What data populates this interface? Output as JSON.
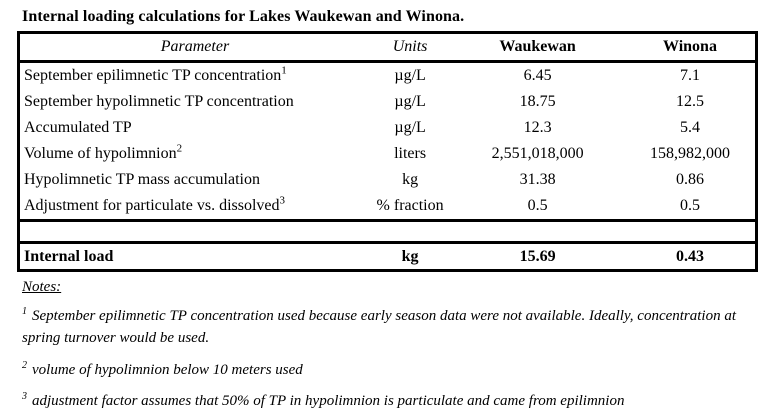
{
  "title": "Internal loading calculations for Lakes Waukewan and Winona.",
  "table": {
    "headers": [
      "Parameter",
      "Units",
      "Waukewan",
      "Winona"
    ],
    "rows": [
      {
        "parameter": "September epilimnetic TP concentration",
        "sup": "1",
        "units": "µg/L",
        "waukewan": "6.45",
        "winona": "7.1"
      },
      {
        "parameter": "September hypolimnetic TP concentration",
        "sup": "",
        "units": "µg/L",
        "waukewan": "18.75",
        "winona": "12.5"
      },
      {
        "parameter": "Accumulated TP",
        "sup": "",
        "units": "µg/L",
        "waukewan": "12.3",
        "winona": "5.4"
      },
      {
        "parameter": "Volume of hypolimnion",
        "sup": "2",
        "units": "liters",
        "waukewan": "2,551,018,000",
        "winona": "158,982,000"
      },
      {
        "parameter": "Hypolimnetic TP mass accumulation",
        "sup": "",
        "units": "kg",
        "waukewan": "31.38",
        "winona": "0.86"
      },
      {
        "parameter": "Adjustment for particulate vs. dissolved",
        "sup": "3",
        "units": "% fraction",
        "waukewan": "0.5",
        "winona": "0.5"
      }
    ],
    "total_row": {
      "parameter": "Internal load",
      "units": "kg",
      "waukewan": "15.69",
      "winona": "0.43"
    }
  },
  "notes": {
    "label": "Notes:",
    "items": [
      {
        "marker": "1",
        "text": "September epilimnetic TP concentration used because early season data were not available.  Ideally, concentration at spring turnover would be used."
      },
      {
        "marker": "2",
        "text": "volume of hypolimnion below 10 meters used"
      },
      {
        "marker": "3",
        "text": "adjustment factor assumes that 50% of TP in hypolimnion is particulate and came from epilimnion"
      }
    ]
  },
  "colors": {
    "text": "#000000",
    "background": "#ffffff",
    "border": "#000000"
  }
}
